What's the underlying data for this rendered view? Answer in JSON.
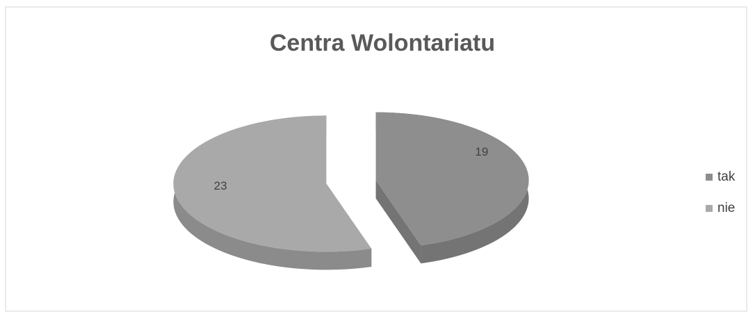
{
  "chart_data": {
    "type": "pie",
    "title": "Centra Wolontariatu",
    "categories": [
      "tak",
      "nie"
    ],
    "values": [
      19,
      23
    ],
    "colors": [
      "#8e8e8e",
      "#a9a9a9"
    ],
    "legend": "right"
  }
}
